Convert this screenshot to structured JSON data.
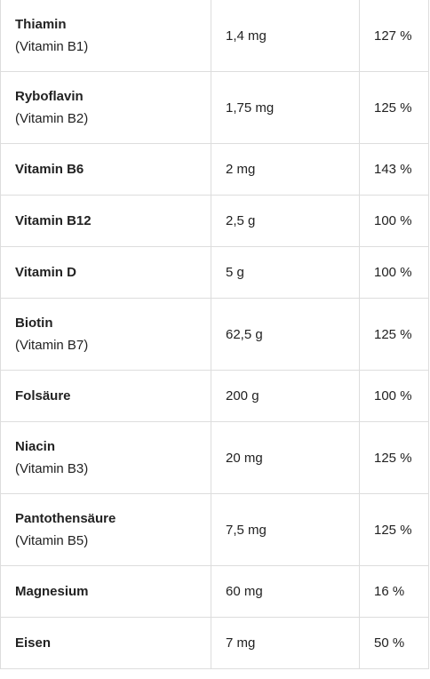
{
  "rows": [
    {
      "name": "Thiamin",
      "sub": "(Vitamin B1)",
      "amount": "1,4 mg",
      "percent": "127 %"
    },
    {
      "name": "Ryboflavin",
      "sub": "(Vitamin B2)",
      "amount": "1,75 mg",
      "percent": "125 %"
    },
    {
      "name": "Vitamin B6",
      "sub": "",
      "amount": "2 mg",
      "percent": "143 %"
    },
    {
      "name": "Vitamin B12",
      "sub": "",
      "amount": "2,5 g",
      "percent": "100 %"
    },
    {
      "name": "Vitamin D",
      "sub": "",
      "amount": "5 g",
      "percent": "100 %"
    },
    {
      "name": "Biotin",
      "sub": "(Vitamin B7)",
      "amount": "62,5 g",
      "percent": "125 %"
    },
    {
      "name": "Folsäure",
      "sub": "",
      "amount": "200 g",
      "percent": "100 %"
    },
    {
      "name": "Niacin",
      "sub": "(Vitamin B3)",
      "amount": "20 mg",
      "percent": "125 %"
    },
    {
      "name": "Pantothensäure",
      "sub": "(Vitamin B5)",
      "amount": "7,5 mg",
      "percent": "125 %"
    },
    {
      "name": "Magnesium",
      "sub": "",
      "amount": "60 mg",
      "percent": "16 %"
    },
    {
      "name": "Eisen",
      "sub": "",
      "amount": "7 mg",
      "percent": "50 %"
    }
  ]
}
